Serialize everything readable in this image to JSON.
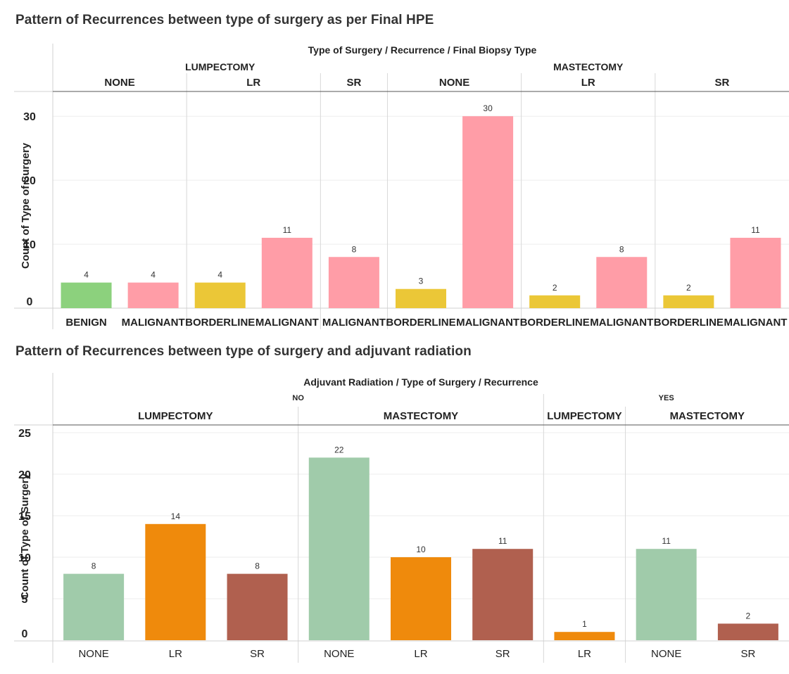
{
  "chart_data": [
    {
      "type": "bar",
      "title": "Pattern of Recurrences between type of surgery  as per Final HPE",
      "header_title": "Type of Surgery / Recurrence / Final Biopsy Type",
      "ylabel": "Count of Type of Surgery",
      "ylim": [
        0,
        32
      ],
      "yticks": [
        0,
        10,
        20,
        30
      ],
      "surgery_groups": [
        "LUMPECTOMY",
        "MASTECTOMY"
      ],
      "recurrence_groups": [
        {
          "surgery": "LUMPECTOMY",
          "recurrence": "NONE"
        },
        {
          "surgery": "LUMPECTOMY",
          "recurrence": "LR"
        },
        {
          "surgery": "LUMPECTOMY",
          "recurrence": "SR"
        },
        {
          "surgery": "MASTECTOMY",
          "recurrence": "NONE"
        },
        {
          "surgery": "MASTECTOMY",
          "recurrence": "LR"
        },
        {
          "surgery": "MASTECTOMY",
          "recurrence": "SR"
        }
      ],
      "bars": [
        {
          "surgery": "LUMPECTOMY",
          "recurrence": "NONE",
          "category": "BENIGN",
          "value": 4
        },
        {
          "surgery": "LUMPECTOMY",
          "recurrence": "NONE",
          "category": "MALIGNANT",
          "value": 4
        },
        {
          "surgery": "LUMPECTOMY",
          "recurrence": "LR",
          "category": "BORDERLINE",
          "value": 4
        },
        {
          "surgery": "LUMPECTOMY",
          "recurrence": "LR",
          "category": "MALIGNANT",
          "value": 11
        },
        {
          "surgery": "LUMPECTOMY",
          "recurrence": "SR",
          "category": "MALIGNANT",
          "value": 8
        },
        {
          "surgery": "MASTECTOMY",
          "recurrence": "NONE",
          "category": "BORDERLINE",
          "value": 3
        },
        {
          "surgery": "MASTECTOMY",
          "recurrence": "NONE",
          "category": "MALIGNANT",
          "value": 30
        },
        {
          "surgery": "MASTECTOMY",
          "recurrence": "LR",
          "category": "BORDERLINE",
          "value": 2
        },
        {
          "surgery": "MASTECTOMY",
          "recurrence": "LR",
          "category": "MALIGNANT",
          "value": 8
        },
        {
          "surgery": "MASTECTOMY",
          "recurrence": "SR",
          "category": "BORDERLINE",
          "value": 2
        },
        {
          "surgery": "MASTECTOMY",
          "recurrence": "SR",
          "category": "MALIGNANT",
          "value": 11
        }
      ],
      "colors": {
        "BENIGN": "#8cd17d",
        "BORDERLINE": "#ebc737",
        "MALIGNANT": "#ff9da7"
      },
      "grid": true,
      "legend": "none"
    },
    {
      "type": "bar",
      "title": "Pattern of Recurrences between  type of surgery and adjuvant radiation",
      "header_title": "Adjuvant Radiation / Type of Surgery / Recurrence",
      "ylabel": "Count of Type of Surgery",
      "ylim": [
        0,
        25
      ],
      "yticks": [
        0,
        5,
        10,
        15,
        20,
        25
      ],
      "radiation_groups": [
        "NO",
        "YES"
      ],
      "surgery_groups": [
        {
          "radiation": "NO",
          "surgery": "LUMPECTOMY"
        },
        {
          "radiation": "NO",
          "surgery": "MASTECTOMY"
        },
        {
          "radiation": "YES",
          "surgery": "LUMPECTOMY"
        },
        {
          "radiation": "YES",
          "surgery": "MASTECTOMY"
        }
      ],
      "bars": [
        {
          "radiation": "NO",
          "surgery": "LUMPECTOMY",
          "category": "NONE",
          "value": 8
        },
        {
          "radiation": "NO",
          "surgery": "LUMPECTOMY",
          "category": "LR",
          "value": 14
        },
        {
          "radiation": "NO",
          "surgery": "LUMPECTOMY",
          "category": "SR",
          "value": 8
        },
        {
          "radiation": "NO",
          "surgery": "MASTECTOMY",
          "category": "NONE",
          "value": 22
        },
        {
          "radiation": "NO",
          "surgery": "MASTECTOMY",
          "category": "LR",
          "value": 10
        },
        {
          "radiation": "NO",
          "surgery": "MASTECTOMY",
          "category": "SR",
          "value": 11
        },
        {
          "radiation": "YES",
          "surgery": "LUMPECTOMY",
          "category": "LR",
          "value": 1
        },
        {
          "radiation": "YES",
          "surgery": "MASTECTOMY",
          "category": "NONE",
          "value": 11
        },
        {
          "radiation": "YES",
          "surgery": "MASTECTOMY",
          "category": "SR",
          "value": 2
        }
      ],
      "colors": {
        "NONE": "#a0cbaa",
        "LR": "#ef8a0c",
        "SR": "#b0604f"
      },
      "grid": true,
      "legend": "none"
    }
  ]
}
